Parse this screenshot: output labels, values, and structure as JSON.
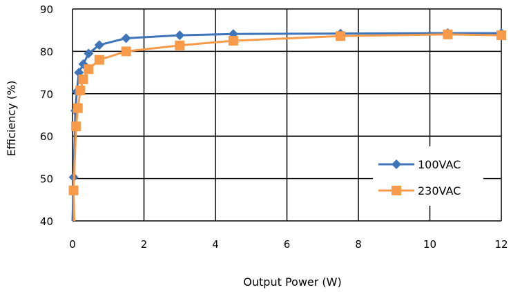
{
  "chart_data": {
    "type": "line",
    "title": "",
    "xlabel": "Output Power (W)",
    "ylabel": "Efficiency (%)",
    "xlim": [
      0,
      12
    ],
    "ylim": [
      40,
      90
    ],
    "xticks": [
      0,
      2,
      4,
      6,
      8,
      10,
      12
    ],
    "yticks": [
      40,
      50,
      60,
      70,
      80,
      90
    ],
    "grid": true,
    "legend_position": "lower-right",
    "series": [
      {
        "name": "100VAC",
        "color": "#3f74b9",
        "marker": "diamond",
        "points": [
          [
            0.0,
            40.0
          ],
          [
            0.03,
            50.3
          ],
          [
            0.08,
            66.0
          ],
          [
            0.12,
            70.5
          ],
          [
            0.18,
            75.0
          ],
          [
            0.3,
            77.0
          ],
          [
            0.45,
            79.5
          ],
          [
            0.75,
            81.5
          ],
          [
            1.5,
            83.1
          ],
          [
            3.0,
            83.8
          ],
          [
            4.5,
            84.1
          ],
          [
            7.5,
            84.2
          ],
          [
            10.5,
            84.3
          ],
          [
            12.0,
            84.3
          ]
        ]
      },
      {
        "name": "230VAC",
        "color": "#f79a4a",
        "marker": "square",
        "points": [
          [
            0.05,
            40.0
          ],
          [
            0.03,
            47.2
          ],
          [
            0.1,
            62.3
          ],
          [
            0.15,
            66.6
          ],
          [
            0.22,
            70.8
          ],
          [
            0.3,
            73.4
          ],
          [
            0.45,
            75.8
          ],
          [
            0.75,
            78.0
          ],
          [
            1.5,
            80.0
          ],
          [
            3.0,
            81.4
          ],
          [
            4.5,
            82.5
          ],
          [
            7.5,
            83.6
          ],
          [
            10.5,
            84.0
          ],
          [
            12.0,
            83.8
          ]
        ]
      }
    ]
  }
}
